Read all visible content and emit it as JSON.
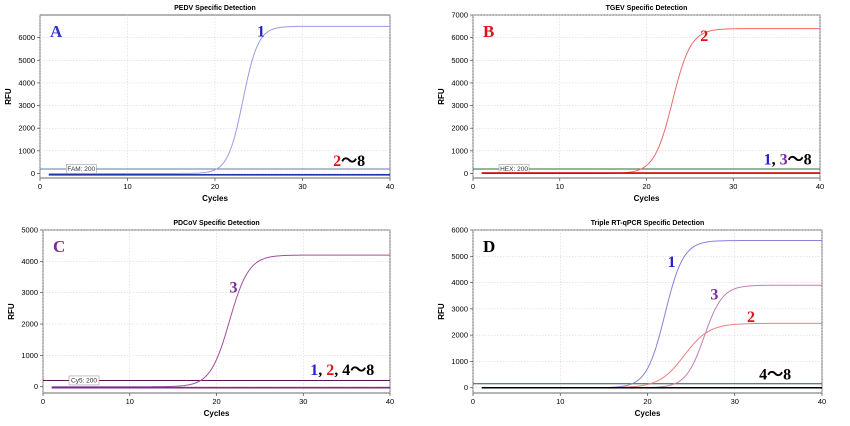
{
  "chart_data": [
    {
      "type": "line",
      "title": "PEDV Specific Detection",
      "panel_label": "A",
      "panel_label_color": "#3333cc",
      "xlabel": "Cycles",
      "ylabel": "RFU",
      "xlim": [
        0,
        40
      ],
      "ylim": [
        -200,
        7000
      ],
      "x_ticks": [
        0,
        10,
        20,
        30,
        40
      ],
      "y_ticks": [
        0,
        1000,
        2000,
        3000,
        4000,
        5000,
        6000
      ],
      "grid": true,
      "threshold": {
        "label": "FAM: 200",
        "value": 200,
        "color": "#5a7fa8"
      },
      "series": [
        {
          "name": "1",
          "color": "#9d9ae0",
          "baseline": 0,
          "plateau": 6500,
          "midpoint": 23.2,
          "slope": 1.15
        },
        {
          "name": "2~8",
          "color": "#1f3aa8",
          "baseline": -60,
          "plateau": -60,
          "midpoint": 99,
          "slope": 1
        }
      ],
      "annotations": [
        {
          "parts": [
            {
              "text": "1",
              "color": "#2323c8"
            }
          ],
          "x": 24.8,
          "y": 6050
        },
        {
          "parts": [
            {
              "text": "2",
              "color": "#d81818"
            },
            {
              "text": "～8",
              "color": "#000000"
            }
          ],
          "x": 33.5,
          "y": 320
        }
      ]
    },
    {
      "type": "line",
      "title": "TGEV Specific Detection",
      "panel_label": "B",
      "panel_label_color": "#d81818",
      "xlabel": "Cycles",
      "ylabel": "RFU",
      "xlim": [
        0,
        40
      ],
      "ylim": [
        -200,
        7000
      ],
      "x_ticks": [
        0,
        10,
        20,
        30,
        40
      ],
      "y_ticks": [
        0,
        1000,
        2000,
        3000,
        4000,
        5000,
        6000,
        7000
      ],
      "grid": true,
      "threshold": {
        "label": "HEX: 200",
        "value": 200,
        "color": "#2e6b3a"
      },
      "series": [
        {
          "name": "2",
          "color": "#f06a6a",
          "baseline": 0,
          "plateau": 6400,
          "midpoint": 23.0,
          "slope": 0.95
        },
        {
          "name": "1, 3~8",
          "color": "#cc0000",
          "baseline": 20,
          "plateau": 20,
          "midpoint": 99,
          "slope": 1
        }
      ],
      "annotations": [
        {
          "parts": [
            {
              "text": "2",
              "color": "#d81818"
            }
          ],
          "x": 26.2,
          "y": 5850
        },
        {
          "parts": [
            {
              "text": "1",
              "color": "#2323c8"
            },
            {
              "text": ", ",
              "color": "#000000"
            },
            {
              "text": "3",
              "color": "#7a2a9a"
            },
            {
              "text": "～8",
              "color": "#000000"
            }
          ],
          "x": 33.5,
          "y": 400
        }
      ]
    },
    {
      "type": "line",
      "title": "PDCoV Specific Detection",
      "panel_label": "C",
      "panel_label_color": "#7a2a9a",
      "xlabel": "Cycles",
      "ylabel": "RFU",
      "xlim": [
        0,
        40
      ],
      "ylim": [
        -200,
        5000
      ],
      "x_ticks": [
        0,
        10,
        20,
        30,
        40
      ],
      "y_ticks": [
        0,
        1000,
        2000,
        3000,
        4000,
        5000
      ],
      "grid": true,
      "threshold": {
        "label": "Cy5: 200",
        "value": 200,
        "color": "#5a1450"
      },
      "series": [
        {
          "name": "3",
          "color": "#a0509a",
          "baseline": 0,
          "plateau": 4200,
          "midpoint": 21.5,
          "slope": 0.9
        },
        {
          "name": "1, 2, 4~8",
          "color": "#7a2a9a",
          "baseline": -30,
          "plateau": -30,
          "midpoint": 99,
          "slope": 1
        }
      ],
      "annotations": [
        {
          "parts": [
            {
              "text": "3",
              "color": "#7a2a9a"
            }
          ],
          "x": 21.5,
          "y": 3000
        },
        {
          "parts": [
            {
              "text": "1",
              "color": "#2323c8"
            },
            {
              "text": ", ",
              "color": "#000000"
            },
            {
              "text": "2",
              "color": "#d81818"
            },
            {
              "text": ", ",
              "color": "#000000"
            },
            {
              "text": "4～8",
              "color": "#000000"
            }
          ],
          "x": 30.8,
          "y": 380
        }
      ]
    },
    {
      "type": "line",
      "title": "Triple RT-qPCR Specific Detection",
      "panel_label": "D",
      "panel_label_color": "#000000",
      "xlabel": "Cycles",
      "ylabel": "RFU",
      "xlim": [
        0,
        40
      ],
      "ylim": [
        -200,
        6000
      ],
      "x_ticks": [
        0,
        10,
        20,
        30,
        40
      ],
      "y_ticks": [
        0,
        1000,
        2000,
        3000,
        4000,
        5000,
        6000
      ],
      "grid": true,
      "threshold": {
        "label": "",
        "value": 150,
        "color": "#2e5a3a"
      },
      "series": [
        {
          "name": "1",
          "color": "#8a80d8",
          "baseline": 0,
          "plateau": 5600,
          "midpoint": 22.0,
          "slope": 0.95
        },
        {
          "name": "3",
          "color": "#c080b8",
          "baseline": 0,
          "plateau": 3900,
          "midpoint": 26.5,
          "slope": 0.95
        },
        {
          "name": "2",
          "color": "#ee8080",
          "baseline": 0,
          "plateau": 2450,
          "midpoint": 24.2,
          "slope": 0.7
        },
        {
          "name": "4~8",
          "color": "#000000",
          "baseline": 0,
          "plateau": 0,
          "midpoint": 99,
          "slope": 1
        }
      ],
      "annotations": [
        {
          "parts": [
            {
              "text": "1",
              "color": "#2323c8"
            }
          ],
          "x": 22.3,
          "y": 4600
        },
        {
          "parts": [
            {
              "text": "3",
              "color": "#7a2a9a"
            }
          ],
          "x": 27.2,
          "y": 3350
        },
        {
          "parts": [
            {
              "text": "2",
              "color": "#d81818"
            }
          ],
          "x": 31.4,
          "y": 2500
        },
        {
          "parts": [
            {
              "text": "4～8",
              "color": "#000000"
            }
          ],
          "x": 32.8,
          "y": 320
        }
      ]
    }
  ]
}
